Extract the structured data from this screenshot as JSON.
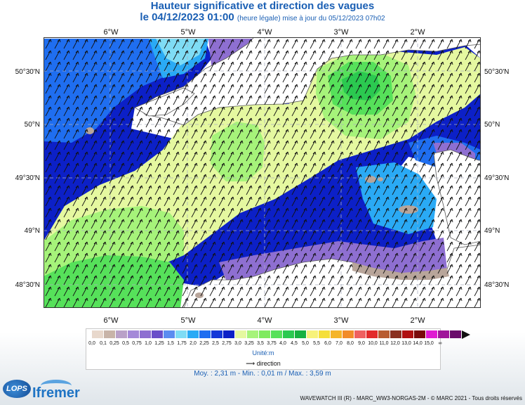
{
  "header": {
    "title": "Hauteur significative et direction des vagues",
    "date_line": "le 04/12/2023 01:00",
    "update_line": "(heure légale) mise à jour du 05/12/2023 07h02"
  },
  "map": {
    "longitude_labels": [
      "6°W",
      "5°W",
      "4°W",
      "3°W",
      "2°W"
    ],
    "latitude_labels": [
      "50°30'N",
      "50°N",
      "49°30'N",
      "49°N",
      "48°30'N"
    ],
    "colors": {
      "land": "#ffffff",
      "coast_purple": "#8e6fd1",
      "coast_taupe": "#b8a59a",
      "band_dark_blue": "#0c20c7",
      "band_blue": "#1f6ef0",
      "band_light_blue": "#2aaaf5",
      "band_cyan": "#7fdcf5",
      "band_yellow_green": "#e5f8a0",
      "band_light_green": "#a6f37a",
      "band_green": "#56e15a",
      "band_dark_green": "#2bc950",
      "grid": "#aab0c0",
      "arrow": "#111111"
    }
  },
  "legend": {
    "scale_values": [
      "0,0",
      "0,1",
      "0,25",
      "0,5",
      "0,75",
      "1,0",
      "1,25",
      "1,5",
      "1,75",
      "2,0",
      "2,25",
      "2,5",
      "2,75",
      "3,0",
      "3,25",
      "3,5",
      "3,75",
      "4,0",
      "4,5",
      "5,0",
      "5,5",
      "6,0",
      "7,0",
      "8,0",
      "9,0",
      "10,0",
      "11,0",
      "12,0",
      "13,0",
      "14,0",
      "15,0",
      "∞"
    ],
    "scale_colors": [
      "#e8d8cc",
      "#c8b4a8",
      "#b9a1c8",
      "#a489d8",
      "#8e6fd1",
      "#6a4fc9",
      "#5b8cf0",
      "#7fdcf5",
      "#2aaaf5",
      "#1f6ef0",
      "#1438d8",
      "#0c20c7",
      "#e5f8a0",
      "#a6f37a",
      "#7fea60",
      "#56e15a",
      "#2bc950",
      "#17b140",
      "#f7f27a",
      "#f5df3a",
      "#f5b52a",
      "#f28c2a",
      "#ef6060",
      "#e32a2a",
      "#b85c30",
      "#8a3020",
      "#b01010",
      "#7a0a0a",
      "#e01ad2",
      "#a0149a",
      "#6b0c6b"
    ],
    "unit": "Unité:m",
    "direction_label": "direction"
  },
  "stats": {
    "text": "Moy. : 2,31 m   -   Min. : 0,01 m / Max. : 3,59 m"
  },
  "logos": {
    "lops": "LOPS",
    "ifremer": "Ifremer"
  },
  "footer": {
    "credit": "WAVEWATCH III (R) - MARC_WW3-NORGAS-2M - © MARC 2021 - Tous droits réservés"
  }
}
